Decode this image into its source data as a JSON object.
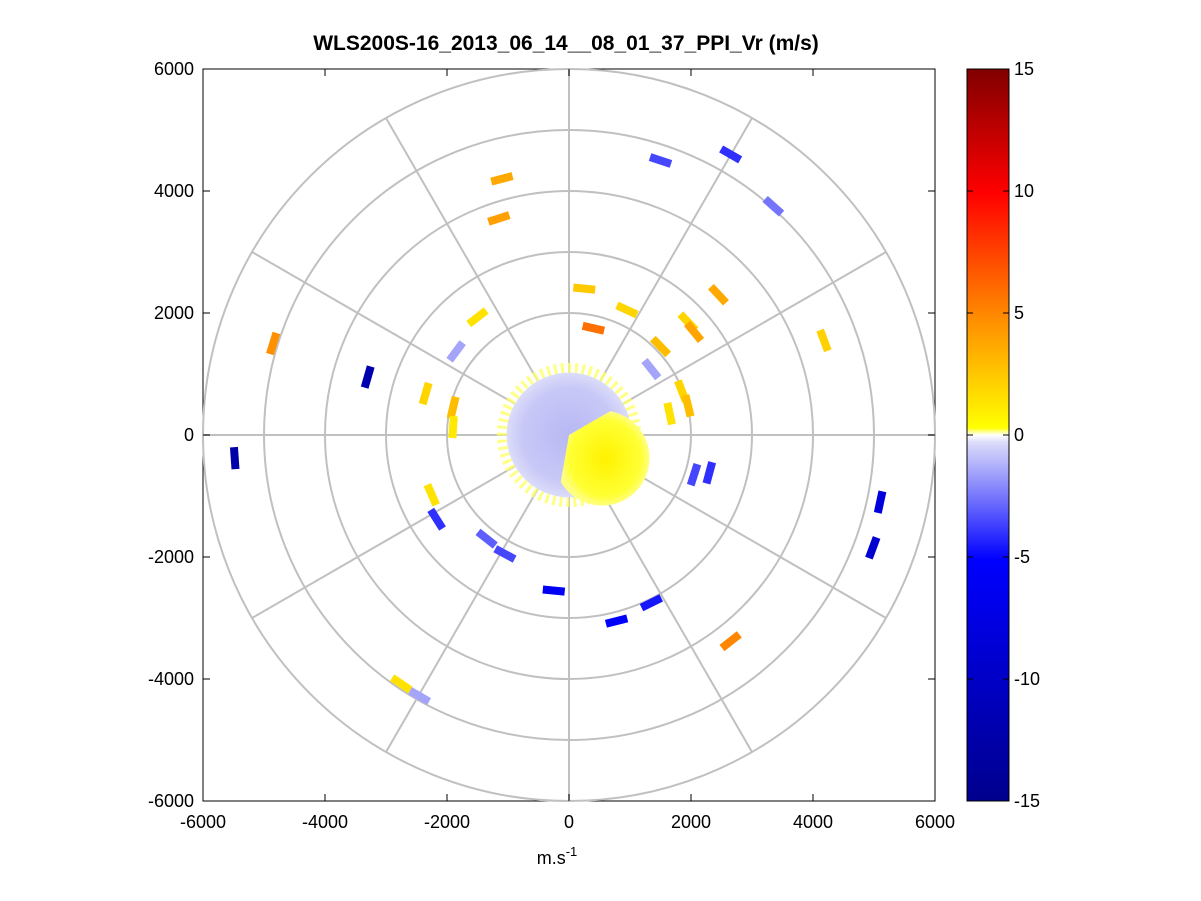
{
  "chart_data": {
    "type": "polar-scan",
    "title": "WLS200S-16_2013_06_14__08_01_37_PPI_Vr (m/s)",
    "xlabel_base": "m.s",
    "xlabel_exponent": "-1",
    "ylabel": "",
    "xlim": [
      -6000,
      6000
    ],
    "ylim": [
      -6000,
      6000
    ],
    "xticks": [
      "-6000",
      "-4000",
      "-2000",
      "0",
      "2000",
      "4000",
      "6000"
    ],
    "yticks": [
      "6000",
      "4000",
      "2000",
      "0",
      "-2000",
      "-4000",
      "-6000"
    ],
    "grid": true,
    "range_rings": [
      1000,
      2000,
      3000,
      4000,
      5000,
      6000
    ],
    "spokes_deg": [
      0,
      30,
      60,
      90,
      120,
      150,
      180,
      210,
      240,
      270,
      300,
      330
    ],
    "colorbar": {
      "min": -15,
      "max": 15,
      "tick_labels": [
        "15",
        "10",
        "5",
        "0",
        "-5",
        "-10",
        "-15"
      ],
      "colors": {
        "deep_blue": "#00008c",
        "blue": "#0000ff",
        "light_blue": "#dcdcfa",
        "white": "#ffffff",
        "yellow": "#ffff00",
        "orange": "#ff8c00",
        "red": "#ff0000",
        "dark_red": "#800000"
      }
    },
    "near_field": {
      "radius": 1100,
      "positive_radius": 780
    },
    "detections": [
      {
        "x": -1100,
        "y": 4200,
        "v": 3.8
      },
      {
        "x": -1150,
        "y": 3550,
        "v": 4.2
      },
      {
        "x": 1500,
        "y": 4500,
        "v": -3.5
      },
      {
        "x": 2650,
        "y": 4600,
        "v": -4.0
      },
      {
        "x": 3350,
        "y": 3750,
        "v": -2.5
      },
      {
        "x": 2450,
        "y": 2300,
        "v": 3.8
      },
      {
        "x": 4180,
        "y": 1550,
        "v": 2.2
      },
      {
        "x": -4850,
        "y": 1500,
        "v": 4.8
      },
      {
        "x": -3300,
        "y": 950,
        "v": -12.0
      },
      {
        "x": -5480,
        "y": -380,
        "v": -12.5
      },
      {
        "x": 5100,
        "y": -1100,
        "v": -8.0
      },
      {
        "x": 4980,
        "y": -1850,
        "v": -9.0
      },
      {
        "x": 2300,
        "y": -620,
        "v": -4.0
      },
      {
        "x": 2050,
        "y": -650,
        "v": -3.5
      },
      {
        "x": 2650,
        "y": -3380,
        "v": 5.2
      },
      {
        "x": 1350,
        "y": -2750,
        "v": -4.5
      },
      {
        "x": 780,
        "y": -3050,
        "v": -5.0
      },
      {
        "x": -250,
        "y": -2550,
        "v": -6.0
      },
      {
        "x": -2250,
        "y": -980,
        "v": 1.5
      },
      {
        "x": -2170,
        "y": -1380,
        "v": -4.0
      },
      {
        "x": -1350,
        "y": -1700,
        "v": -3.0
      },
      {
        "x": -1050,
        "y": -1950,
        "v": -3.5
      },
      {
        "x": -2750,
        "y": -4080,
        "v": 1.5
      },
      {
        "x": -2450,
        "y": -4280,
        "v": -1.5
      },
      {
        "x": 250,
        "y": 2400,
        "v": 2.5
      },
      {
        "x": 950,
        "y": 2050,
        "v": 2.0
      },
      {
        "x": 400,
        "y": 1750,
        "v": 6.0
      },
      {
        "x": 1950,
        "y": 1850,
        "v": 2.0
      },
      {
        "x": 2050,
        "y": 1690,
        "v": 4.0
      },
      {
        "x": 1350,
        "y": 1080,
        "v": -1.5
      },
      {
        "x": 1500,
        "y": 1450,
        "v": 3.0
      },
      {
        "x": -1500,
        "y": 1930,
        "v": 1.5
      },
      {
        "x": -2350,
        "y": 680,
        "v": 2.0
      },
      {
        "x": -1900,
        "y": 450,
        "v": 3.0
      },
      {
        "x": -1900,
        "y": 130,
        "v": 1.2
      },
      {
        "x": -1850,
        "y": 1370,
        "v": -1.5
      },
      {
        "x": 1850,
        "y": 720,
        "v": 2.0
      },
      {
        "x": 1950,
        "y": 480,
        "v": 3.0
      },
      {
        "x": 1650,
        "y": 350,
        "v": 1.5
      }
    ]
  }
}
